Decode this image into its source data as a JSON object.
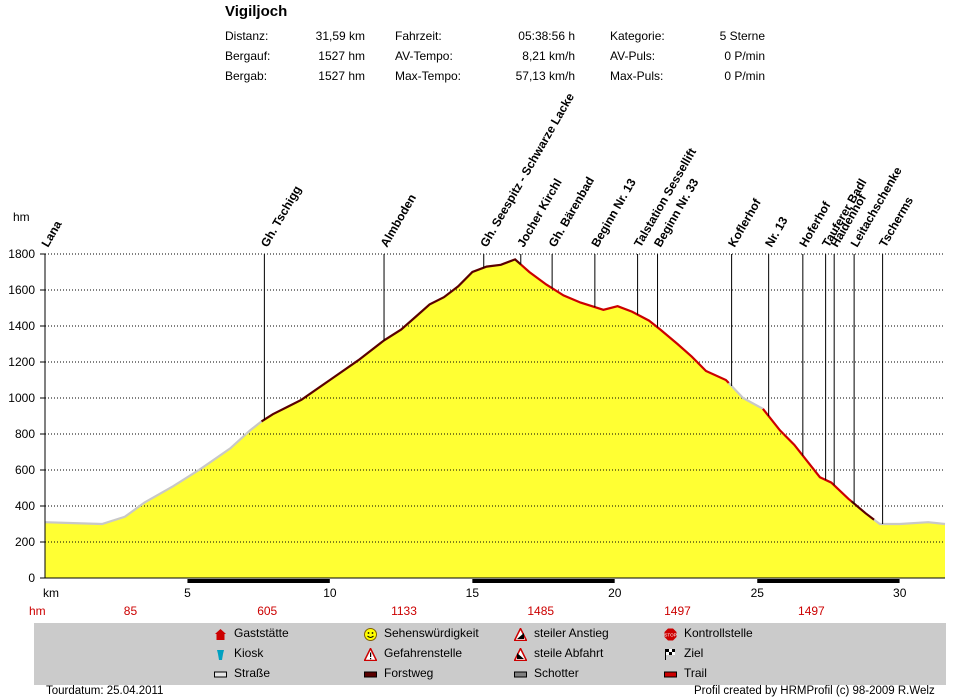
{
  "title": "Vigiljoch",
  "stats": [
    [
      {
        "label": "Distanz:",
        "value": "31,59 km"
      },
      {
        "label": "Fahrzeit:",
        "value": "05:38:56 h"
      },
      {
        "label": "Kategorie:",
        "value": "5 Sterne"
      }
    ],
    [
      {
        "label": "Bergauf:",
        "value": "1527 hm"
      },
      {
        "label": "AV-Tempo:",
        "value": "8,21 km/h"
      },
      {
        "label": "AV-Puls:",
        "value": "0 P/min"
      }
    ],
    [
      {
        "label": "Bergab:",
        "value": "1527 hm"
      },
      {
        "label": "Max-Tempo:",
        "value": "57,13 km/h"
      },
      {
        "label": "Max-Puls:",
        "value": "0 P/min"
      }
    ]
  ],
  "colors": {
    "fill": "#ffff33",
    "road": "#c8c8c8",
    "trail": "#cc0000",
    "forest": "#5a0000",
    "grid": "#000000",
    "hm_text": "#cc0000"
  },
  "chart_data": {
    "type": "area",
    "xlabel": "km",
    "ylabel": "hm",
    "xlim": [
      0,
      31.59
    ],
    "ylim": [
      0,
      1800
    ],
    "yticks": [
      0,
      200,
      400,
      600,
      800,
      1000,
      1200,
      1400,
      1600,
      1800
    ],
    "xticks": [
      5,
      10,
      15,
      20,
      25,
      30
    ],
    "grid": "horizontal",
    "x": [
      0,
      1.0,
      2.0,
      2.8,
      3.5,
      4.5,
      5.5,
      6.5,
      7.2,
      7.6,
      8.0,
      8.5,
      9.0,
      10.0,
      11.0,
      11.9,
      12.5,
      13.0,
      13.5,
      14.0,
      14.5,
      15.0,
      15.5,
      16.0,
      16.5,
      17.0,
      17.6,
      18.2,
      18.8,
      19.2,
      19.6,
      20.1,
      20.6,
      21.2,
      21.6,
      22.2,
      22.7,
      23.2,
      23.9,
      24.5,
      25.2,
      25.8,
      26.3,
      26.8,
      27.2,
      27.6,
      28.2,
      28.8,
      29.3,
      30.0,
      31.0,
      31.59
    ],
    "y": [
      310,
      305,
      300,
      340,
      420,
      510,
      610,
      720,
      820,
      870,
      910,
      950,
      990,
      1100,
      1210,
      1320,
      1380,
      1450,
      1520,
      1560,
      1620,
      1700,
      1730,
      1740,
      1770,
      1700,
      1630,
      1570,
      1530,
      1510,
      1490,
      1510,
      1480,
      1430,
      1380,
      1300,
      1230,
      1150,
      1100,
      1000,
      940,
      820,
      740,
      640,
      560,
      530,
      440,
      360,
      300,
      300,
      310,
      300
    ],
    "surface_segments": [
      {
        "type": "Straße",
        "from": 0,
        "to": 7.6
      },
      {
        "type": "Forstweg",
        "from": 7.6,
        "to": 16.7
      },
      {
        "type": "Trail",
        "from": 16.7,
        "to": 24.0
      },
      {
        "type": "Straße",
        "from": 24.0,
        "to": 25.2
      },
      {
        "type": "Trail",
        "from": 25.2,
        "to": 28.3
      },
      {
        "type": "Forstweg",
        "from": 28.3,
        "to": 29.1
      },
      {
        "type": "Straße",
        "from": 29.1,
        "to": 31.59
      }
    ],
    "waypoints": [
      {
        "name": "Lana",
        "km": 0
      },
      {
        "name": "Gh. Tschigg",
        "km": 7.7
      },
      {
        "name": "Almboden",
        "km": 11.9
      },
      {
        "name": "Gh. Seespitz - Schwarze Lacke",
        "km": 15.4
      },
      {
        "name": "Jocher Kirchl",
        "km": 16.7
      },
      {
        "name": "Gh. Bärenbad",
        "km": 17.8
      },
      {
        "name": "Beginn Nr. 13",
        "km": 19.3
      },
      {
        "name": "Talstation Sessellift",
        "km": 20.8
      },
      {
        "name": "Beginn Nr. 33",
        "km": 21.5
      },
      {
        "name": "Koflerhof",
        "km": 24.1
      },
      {
        "name": "Nr. 13",
        "km": 25.4
      },
      {
        "name": "Hoferhof",
        "km": 26.6
      },
      {
        "name": "Tauferer Badl",
        "km": 27.4
      },
      {
        "name": "Haidenhof",
        "km": 27.7
      },
      {
        "name": "Leitachschenke",
        "km": 28.4
      },
      {
        "name": "Tscherms",
        "km": 29.4
      }
    ],
    "hm_labels": [
      {
        "km": 3,
        "value": "85"
      },
      {
        "km": 7.8,
        "value": "605"
      },
      {
        "km": 12.6,
        "value": "1133"
      },
      {
        "km": 17.4,
        "value": "1485"
      },
      {
        "km": 22.2,
        "value": "1497"
      },
      {
        "km": 26.9,
        "value": "1497"
      }
    ]
  },
  "legend": [
    {
      "label": "Gaststätte",
      "icon": "house-icon"
    },
    {
      "label": "Sehenswürdigkeit",
      "icon": "smiley-icon"
    },
    {
      "label": "steiler Anstieg",
      "icon": "steep-climb-icon"
    },
    {
      "label": "Kontrollstelle",
      "icon": "stop-sign-icon"
    },
    {
      "label": "Kiosk",
      "icon": "kiosk-icon"
    },
    {
      "label": "Gefahrenstelle",
      "icon": "warning-icon"
    },
    {
      "label": "steile Abfahrt",
      "icon": "steep-descent-icon"
    },
    {
      "label": "Ziel",
      "icon": "finish-flag-icon"
    },
    {
      "label": "Straße",
      "icon": "road-swatch"
    },
    {
      "label": "Forstweg",
      "icon": "forest-road-swatch"
    },
    {
      "label": "Schotter",
      "icon": "gravel-swatch"
    },
    {
      "label": "Trail",
      "icon": "trail-swatch"
    }
  ],
  "footer": {
    "date": "Tourdatum: 25.04.2011",
    "credit": "Profil created by HRMProfil (c) 98-2009 R.Welz"
  }
}
